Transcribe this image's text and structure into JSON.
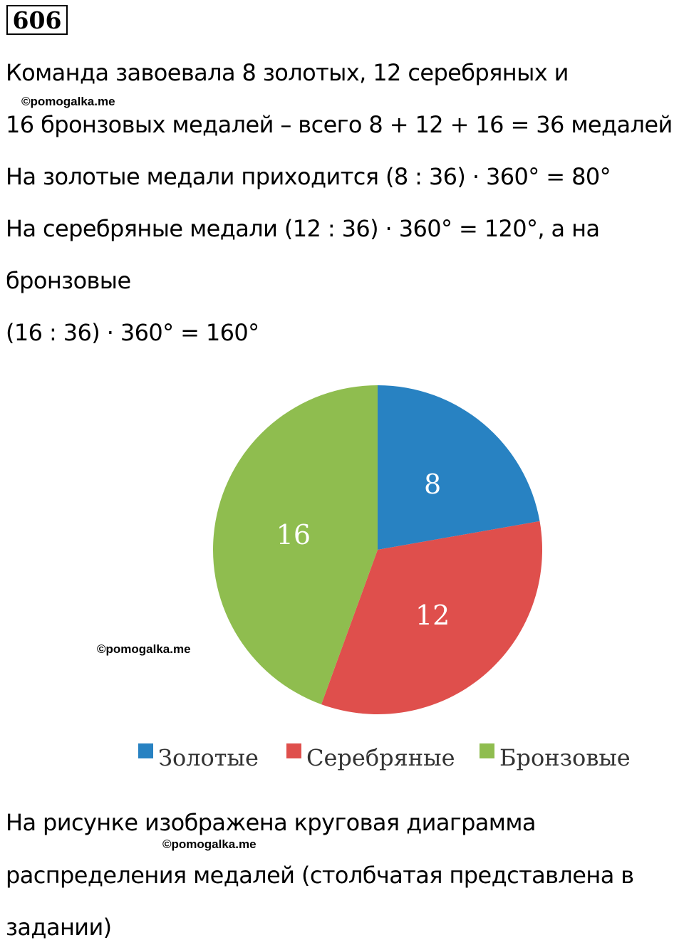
{
  "task_number": "606",
  "text_lines": [
    "Команда завоевала 8 золотых, 12 серебряных и",
    "16 бронзовых медалей – всего 8 + 12 + 16 = 36 медалей",
    "На золотые медали приходится (8 : 36) · 360° = 80°",
    "На серебряные медали (12 : 36) · 360° = 120°, а на",
    "бронзовые",
    "(16 : 36) · 360° = 160°"
  ],
  "bottom_lines": [
    "На рисунке изображена круговая диаграмма",
    "распределения медалей (столбчатая представлена в",
    "задании)"
  ],
  "watermarks": [
    "©pomogalka.me",
    "©pomogalka.me",
    "©pomogalka.me"
  ],
  "chart_data": {
    "type": "pie",
    "title": "",
    "categories": [
      "Золотые",
      "Серебряные",
      "Бронзовые"
    ],
    "values": [
      8,
      12,
      16
    ],
    "colors": [
      "#2882c2",
      "#df4f4c",
      "#8fbd4f"
    ],
    "legend_placement": "bottom"
  }
}
